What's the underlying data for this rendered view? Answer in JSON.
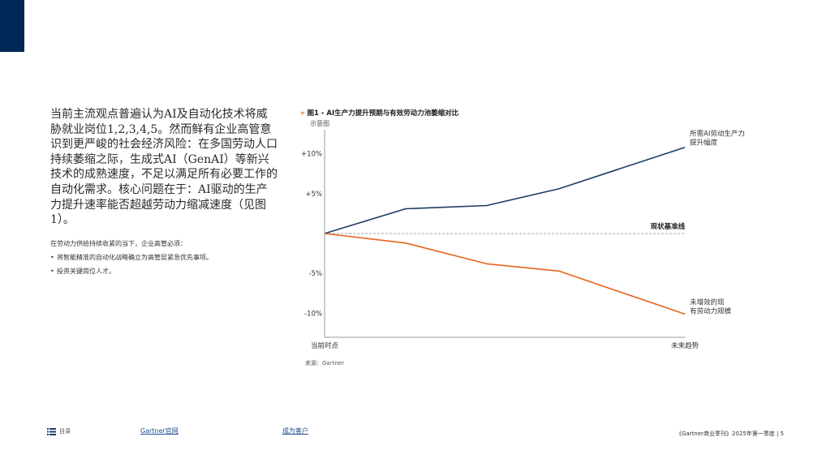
{
  "left": {
    "main_text": "当前主流观点普遍认为AI及自动化技术将威胁就业岗位1,2,3,4,5。然而鲜有企业高管意识到更严峻的社会经济风险：在多国劳动人口持续萎缩之际，生成式AI（GenAI）等新兴技术的成熟速度，不足以满足所有必要工作的自动化需求。核心问题在于：AI驱动的生产力提升速率能否超越劳动力缩减速度（见图1）。",
    "intro": "在劳动力供给持续收紧的当下，企业高管必须：",
    "bullets": [
      "将智能精准的自动化战略确立为高管层紧急优先事项。",
      "投资关键岗位人才。"
    ]
  },
  "figure": {
    "marker": "»",
    "title": "图1 - AI生产力提升预期与有效劳动力池萎缩对比",
    "subtitle": "示意图",
    "source": "来源：Gartner"
  },
  "chart_data": {
    "type": "line",
    "x": [
      0,
      0.225,
      0.45,
      0.65,
      1.0
    ],
    "ylim": [
      -13,
      13
    ],
    "yticks": [
      10,
      5,
      -5,
      -10
    ],
    "ytick_labels": [
      "+10%",
      "+5%",
      "-5%",
      "-10%"
    ],
    "xtick_labels": [
      "当前时点",
      "未来趋势"
    ],
    "baseline_label": "现状基准线",
    "grid": false,
    "series": [
      {
        "name": "所需AI劳动生产力提升幅度",
        "color": "#1c3a63",
        "values": [
          0,
          3.1,
          3.5,
          5.6,
          10.8
        ]
      },
      {
        "name": "未增效的现有劳动力规模",
        "color": "#e8641b",
        "values": [
          0,
          -1.2,
          -3.8,
          -4.7,
          -10.1
        ]
      }
    ]
  },
  "footer": {
    "toc_label": "目录",
    "link1": "Gartner官网",
    "link2": "成为客户",
    "right_text": "《Gartner商业季刊》2025年第一季度 | 5"
  }
}
